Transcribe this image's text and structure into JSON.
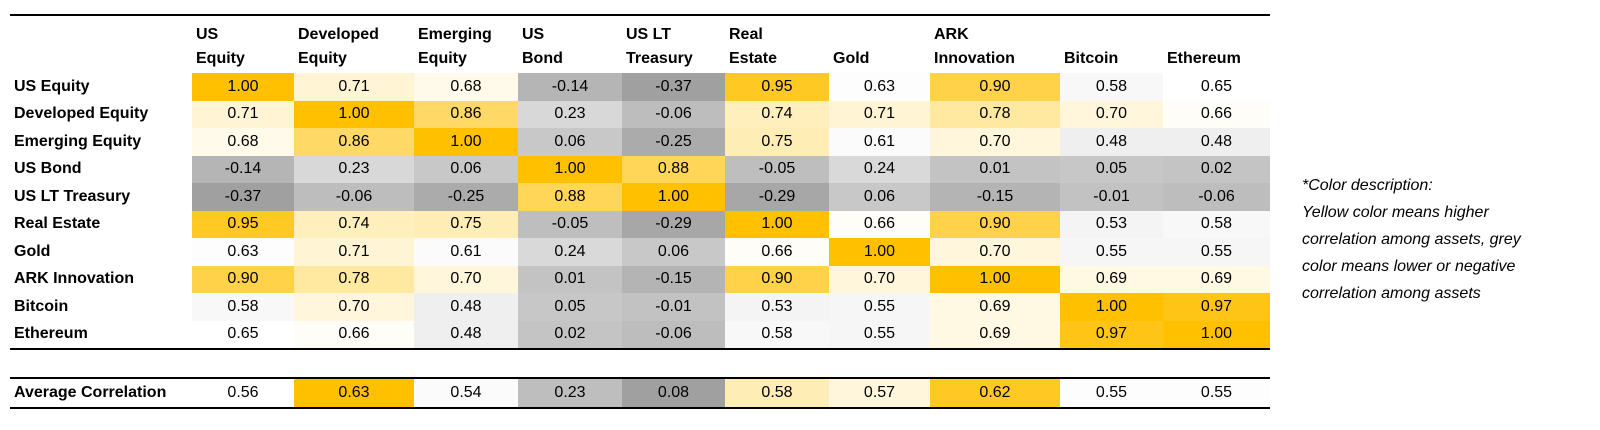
{
  "table": {
    "headers": [
      [
        "US",
        "Equity"
      ],
      [
        "Developed",
        "Equity"
      ],
      [
        "Emerging",
        "Equity"
      ],
      [
        "US",
        "Bond"
      ],
      [
        "US LT",
        "Treasury"
      ],
      [
        "Real",
        "Estate"
      ],
      [
        "Gold"
      ],
      [
        "ARK",
        "Innovation"
      ],
      [
        "Bitcoin"
      ],
      [
        "Ethereum"
      ]
    ],
    "rows": [
      {
        "label": "US Equity",
        "cells": [
          "1.00",
          "0.71",
          "0.68",
          "-0.14",
          "-0.37",
          "0.95",
          "0.63",
          "0.90",
          "0.58",
          "0.65"
        ]
      },
      {
        "label": "Developed Equity",
        "cells": [
          "0.71",
          "1.00",
          "0.86",
          "0.23",
          "-0.06",
          "0.74",
          "0.71",
          "0.78",
          "0.70",
          "0.66"
        ]
      },
      {
        "label": "Emerging Equity",
        "cells": [
          "0.68",
          "0.86",
          "1.00",
          "0.06",
          "-0.25",
          "0.75",
          "0.61",
          "0.70",
          "0.48",
          "0.48"
        ]
      },
      {
        "label": "US Bond",
        "cells": [
          "-0.14",
          "0.23",
          "0.06",
          "1.00",
          "0.88",
          "-0.05",
          "0.24",
          "0.01",
          "0.05",
          "0.02"
        ]
      },
      {
        "label": "US LT Treasury",
        "cells": [
          "-0.37",
          "-0.06",
          "-0.25",
          "0.88",
          "1.00",
          "-0.29",
          "0.06",
          "-0.15",
          "-0.01",
          "-0.06"
        ]
      },
      {
        "label": "Real Estate",
        "cells": [
          "0.95",
          "0.74",
          "0.75",
          "-0.05",
          "-0.29",
          "1.00",
          "0.66",
          "0.90",
          "0.53",
          "0.58"
        ]
      },
      {
        "label": "Gold",
        "cells": [
          "0.63",
          "0.71",
          "0.61",
          "0.24",
          "0.06",
          "0.66",
          "1.00",
          "0.70",
          "0.55",
          "0.55"
        ]
      },
      {
        "label": "ARK Innovation",
        "cells": [
          "0.90",
          "0.78",
          "0.70",
          "0.01",
          "-0.15",
          "0.90",
          "0.70",
          "1.00",
          "0.69",
          "0.69"
        ]
      },
      {
        "label": "Bitcoin",
        "cells": [
          "0.58",
          "0.70",
          "0.48",
          "0.05",
          "-0.01",
          "0.53",
          "0.55",
          "0.69",
          "1.00",
          "0.97"
        ]
      },
      {
        "label": "Ethereum",
        "cells": [
          "0.65",
          "0.66",
          "0.48",
          "0.02",
          "-0.06",
          "0.58",
          "0.55",
          "0.69",
          "0.97",
          "1.00"
        ]
      }
    ],
    "summary": {
      "label": "Average Correlation",
      "cells": [
        "0.56",
        "0.63",
        "0.54",
        "0.23",
        "0.08",
        "0.58",
        "0.57",
        "0.62",
        "0.55",
        "0.55"
      ]
    }
  },
  "note": {
    "title": "*Color description:",
    "lines": [
      "Yellow color means higher",
      "correlation among assets, grey",
      "color means lower or negative",
      "correlation among assets"
    ]
  }
}
